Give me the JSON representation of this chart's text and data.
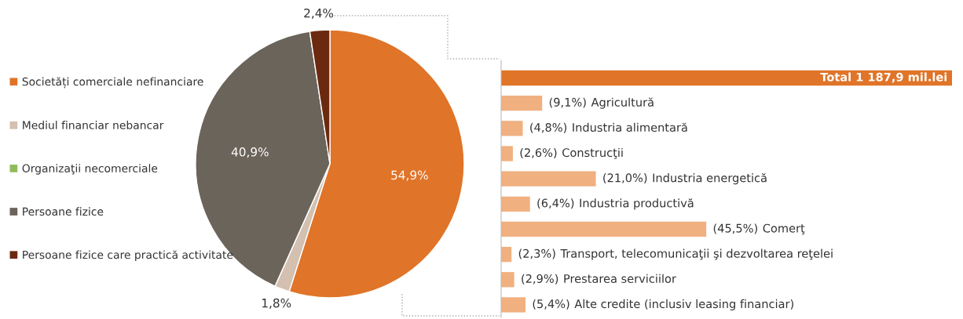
{
  "chart_data": [
    {
      "type": "pie",
      "categories": [
        "Societăți comerciale nefinanciare",
        "Mediul financiar nebancar",
        "Organizaţii necomerciale",
        "Persoane fizice",
        "Persoane fizice care practică activitate"
      ],
      "values": [
        54.9,
        1.8,
        0,
        40.9,
        2.4
      ],
      "value_labels": [
        "54,9%",
        "1,8%",
        null,
        "40,9%",
        "2,4%"
      ],
      "colors": [
        "#e07428",
        "#d3c0b0",
        "#8fbc5a",
        "#6b645a",
        "#6b2a10"
      ],
      "legend": "left"
    },
    {
      "type": "bar",
      "orientation": "horizontal",
      "categories": [
        null,
        "Agricultură",
        "Industria alimentară",
        "Construcţii",
        "Industria energetică",
        "Industria productivă",
        "Comerţ",
        "Transport, telecomunicaţii şi dezvoltarea reţelei",
        "Prestarea serviciilor",
        "Alte credite (inclusiv leasing financiar)"
      ],
      "values": [
        100,
        9.1,
        4.8,
        2.6,
        21.0,
        6.4,
        45.5,
        2.3,
        2.9,
        5.4
      ],
      "value_labels": [
        "Total 1 187,9 mil.lei",
        "(9,1%)",
        "(4,8%)",
        "(2,6%)",
        "(21,0%)",
        "(6,4%)",
        "(45,5%)",
        "(2,3%)",
        "(2,9%)",
        "(5,4%)"
      ],
      "colors": [
        "#e07428",
        "#f1b080",
        "#f1b080",
        "#f1b080",
        "#f1b080",
        "#f1b080",
        "#f1b080",
        "#f1b080",
        "#f1b080",
        "#f1b080"
      ]
    }
  ]
}
